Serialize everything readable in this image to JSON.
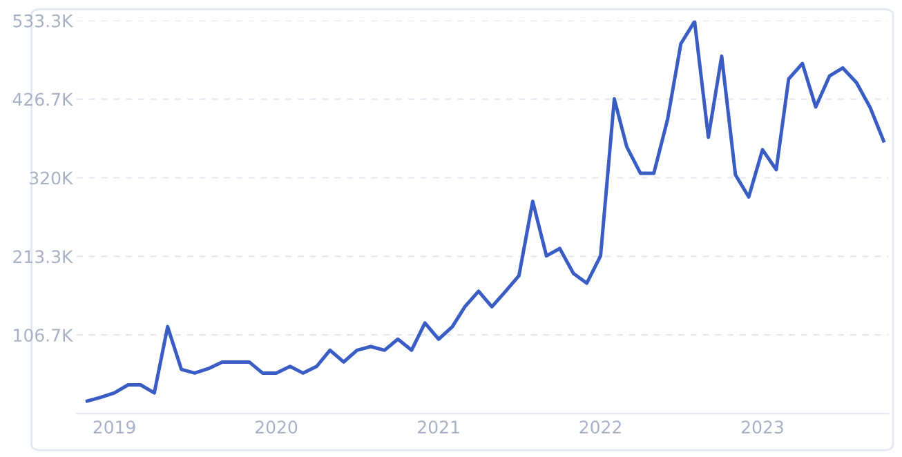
{
  "chart_data": {
    "type": "line",
    "x": [
      "2018-11",
      "2018-12",
      "2019-01",
      "2019-02",
      "2019-03",
      "2019-04",
      "2019-05",
      "2019-06",
      "2019-07",
      "2019-08",
      "2019-09",
      "2019-10",
      "2019-11",
      "2019-12",
      "2020-01",
      "2020-02",
      "2020-03",
      "2020-04",
      "2020-05",
      "2020-06",
      "2020-07",
      "2020-08",
      "2020-09",
      "2020-10",
      "2020-11",
      "2020-12",
      "2021-01",
      "2021-02",
      "2021-03",
      "2021-04",
      "2021-05",
      "2021-06",
      "2021-07",
      "2021-08",
      "2021-09",
      "2021-10",
      "2021-11",
      "2021-12",
      "2022-01",
      "2022-02",
      "2022-03",
      "2022-04",
      "2022-05",
      "2022-06",
      "2022-07",
      "2022-08",
      "2022-09",
      "2022-10",
      "2022-11",
      "2022-12",
      "2023-01",
      "2023-02",
      "2023-03",
      "2023-04",
      "2023-05",
      "2023-06",
      "2023-07",
      "2023-08",
      "2023-09",
      "2023-10"
    ],
    "series": [
      {
        "color": "#3a5cc5",
        "values": [
          17,
          22,
          28,
          39,
          39,
          28,
          118,
          60,
          55,
          61,
          70,
          70,
          70,
          55,
          55,
          64,
          55,
          64,
          86,
          70,
          86,
          91,
          86,
          101,
          86,
          123,
          101,
          118,
          145,
          166,
          145,
          166,
          187,
          288,
          214,
          224,
          190,
          177,
          214,
          427,
          362,
          326,
          326,
          399,
          502,
          532,
          375,
          485,
          324,
          294,
          358,
          331,
          454,
          475,
          416,
          458,
          469,
          449,
          415,
          370
        ]
      }
    ],
    "xlim": [
      "2018-10-08",
      "2023-10-12"
    ],
    "xticks": [
      {
        "value": "2019-01",
        "label": "2019"
      },
      {
        "value": "2020-01",
        "label": "2020"
      },
      {
        "value": "2021-01",
        "label": "2021"
      },
      {
        "value": "2022-01",
        "label": "2022"
      },
      {
        "value": "2023-01",
        "label": "2023"
      }
    ],
    "ylim": [
      0,
      533.3
    ],
    "yticks": [
      {
        "value": 106.7,
        "label": "106.7K"
      },
      {
        "value": 213.3,
        "label": "213.3K"
      },
      {
        "value": 320,
        "label": "320K"
      },
      {
        "value": 426.7,
        "label": "426.7K"
      },
      {
        "value": 533.3,
        "label": "533.3K"
      }
    ],
    "grid": "y",
    "legend": false,
    "marker": "none",
    "line_style": "solid"
  }
}
